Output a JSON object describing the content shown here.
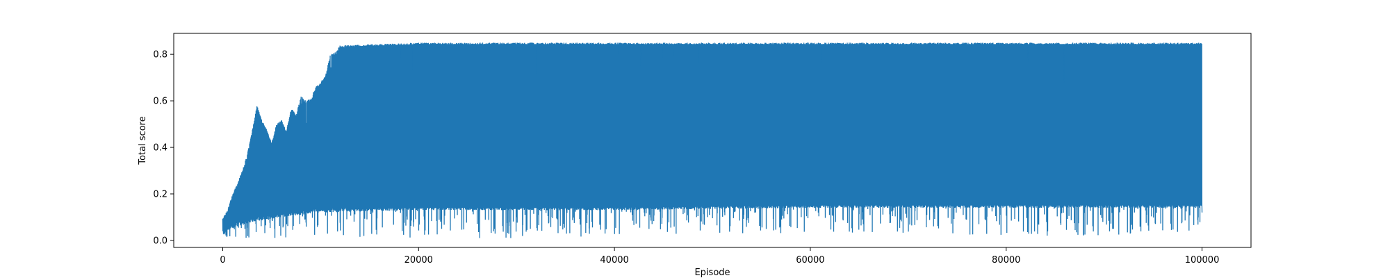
{
  "chart_data": {
    "type": "line",
    "title": "",
    "xlabel": "Episode",
    "ylabel": "Total score",
    "xlim": [
      -5000,
      105000
    ],
    "ylim": [
      -0.03,
      0.89
    ],
    "x_ticks": [
      0,
      20000,
      40000,
      60000,
      80000,
      100000
    ],
    "x_tick_labels": [
      "0",
      "20000",
      "40000",
      "60000",
      "80000",
      "100000"
    ],
    "y_ticks": [
      0.0,
      0.2,
      0.4,
      0.6,
      0.8
    ],
    "y_tick_labels": [
      "0.0",
      "0.2",
      "0.4",
      "0.6",
      "0.8"
    ],
    "grid": false,
    "legend": "none",
    "series_color": "#1f77b4",
    "series": [
      {
        "x_range": [
          0,
          100000
        ],
        "upper_envelope": [
          [
            0,
            0.1
          ],
          [
            500,
            0.13
          ],
          [
            1000,
            0.2
          ],
          [
            1500,
            0.25
          ],
          [
            2000,
            0.3
          ],
          [
            2500,
            0.37
          ],
          [
            3000,
            0.47
          ],
          [
            3500,
            0.58
          ],
          [
            4000,
            0.52
          ],
          [
            4500,
            0.48
          ],
          [
            5000,
            0.42
          ],
          [
            5500,
            0.5
          ],
          [
            6000,
            0.52
          ],
          [
            6500,
            0.47
          ],
          [
            7000,
            0.57
          ],
          [
            7500,
            0.54
          ],
          [
            8000,
            0.62
          ],
          [
            8500,
            0.6
          ],
          [
            9000,
            0.61
          ],
          [
            9500,
            0.66
          ],
          [
            10000,
            0.68
          ],
          [
            10500,
            0.71
          ],
          [
            11000,
            0.8
          ],
          [
            11500,
            0.81
          ],
          [
            12000,
            0.84
          ],
          [
            13000,
            0.84
          ],
          [
            20000,
            0.85
          ],
          [
            40000,
            0.85
          ],
          [
            60000,
            0.85
          ],
          [
            80000,
            0.85
          ],
          [
            100000,
            0.85
          ]
        ],
        "lower_envelope": [
          [
            0,
            0.01
          ],
          [
            1000,
            0.01
          ],
          [
            5000,
            0.01
          ],
          [
            10000,
            0.01
          ],
          [
            15000,
            0.01
          ],
          [
            20000,
            0.01
          ],
          [
            30000,
            0.01
          ],
          [
            40000,
            0.02
          ],
          [
            50000,
            0.03
          ],
          [
            60000,
            0.03
          ],
          [
            70000,
            0.03
          ],
          [
            80000,
            0.02
          ],
          [
            90000,
            0.02
          ],
          [
            100000,
            0.03
          ]
        ],
        "dense_lower": [
          [
            0,
            0.02
          ],
          [
            1000,
            0.05
          ],
          [
            3000,
            0.08
          ],
          [
            6000,
            0.1
          ],
          [
            10000,
            0.12
          ],
          [
            20000,
            0.13
          ],
          [
            40000,
            0.13
          ],
          [
            60000,
            0.14
          ],
          [
            80000,
            0.14
          ],
          [
            100000,
            0.14
          ]
        ],
        "final_value_range": [
          0.12,
          0.84
        ]
      }
    ]
  }
}
